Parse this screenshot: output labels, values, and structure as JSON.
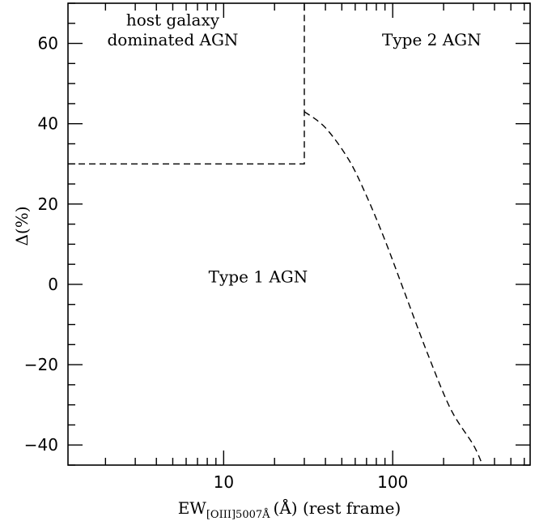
{
  "chart_data": {
    "type": "line",
    "xscale": "log",
    "xlim": [
      1.2,
      650
    ],
    "ylim": [
      -45,
      70
    ],
    "xlabel": {
      "main": "EW",
      "sub": "[OIII]5007Å",
      "rest": "(Å) (rest frame)"
    },
    "ylabel": "Δ(%)",
    "x_ticks": [
      {
        "value": 10,
        "label": "10"
      },
      {
        "value": 100,
        "label": "100"
      }
    ],
    "y_ticks": [
      {
        "value": 60,
        "label": "60"
      },
      {
        "value": 40,
        "label": "40"
      },
      {
        "value": 20,
        "label": "20"
      },
      {
        "value": 0,
        "label": "0"
      },
      {
        "value": -20,
        "label": "−20"
      },
      {
        "value": -40,
        "label": "−40"
      }
    ],
    "series": [
      {
        "style": "dashed",
        "x": [
          1.2,
          30,
          30
        ],
        "y": [
          30,
          30,
          70
        ]
      },
      {
        "style": "dashed",
        "x": [
          30,
          40,
          55,
          70,
          90,
          120,
          160,
          220,
          300,
          340
        ],
        "y": [
          43,
          39,
          31,
          22,
          11,
          -3,
          -17,
          -31,
          -40,
          -45
        ]
      }
    ],
    "annotations": [
      {
        "id": "host",
        "lines": [
          "host galaxy",
          "dominated AGN"
        ],
        "x": 5.0,
        "y": [
          64.5,
          59.5
        ]
      },
      {
        "id": "type2",
        "lines": [
          "Type 2 AGN"
        ],
        "x": 170,
        "y": [
          59.5
        ]
      },
      {
        "id": "type1",
        "lines": [
          "Type 1 AGN"
        ],
        "x": 16,
        "y": [
          0.5
        ]
      }
    ]
  }
}
